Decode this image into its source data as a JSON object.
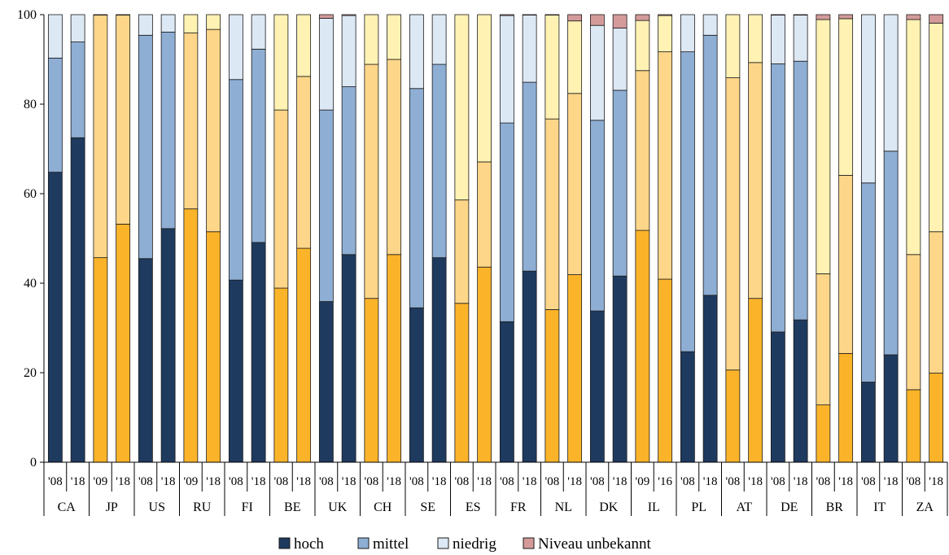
{
  "chart_data": {
    "type": "bar",
    "stacked": true,
    "title": "",
    "xlabel": "",
    "ylabel": "",
    "ylim": [
      0,
      100
    ],
    "yticks": [
      0,
      20,
      40,
      60,
      80,
      100
    ],
    "grid": false,
    "legend_position": "bottom",
    "countries": [
      "CA",
      "JP",
      "US",
      "RU",
      "FI",
      "BE",
      "UK",
      "CH",
      "SE",
      "ES",
      "FR",
      "NL",
      "DK",
      "IL",
      "PL",
      "AT",
      "DE",
      "BR",
      "IT",
      "ZA"
    ],
    "categories": [
      "'08",
      "'18",
      "'09",
      "'18",
      "'08",
      "'18",
      "'09",
      "'18",
      "'08",
      "'18",
      "'08",
      "'18",
      "'08",
      "'18",
      "'08",
      "'18",
      "'08",
      "'18",
      "'08",
      "'18",
      "'08",
      "'18",
      "'08",
      "'18",
      "'08",
      "'18",
      "'09",
      "'16",
      "'08",
      "'18",
      "'08",
      "'18",
      "'08",
      "'18",
      "'08",
      "'18",
      "'08",
      "'18",
      "'08",
      "'18"
    ],
    "palette": [
      "blue",
      "blue",
      "orange",
      "orange",
      "blue",
      "blue",
      "orange",
      "orange",
      "blue",
      "blue",
      "orange",
      "orange",
      "blue",
      "blue",
      "orange",
      "orange",
      "blue",
      "blue",
      "orange",
      "orange",
      "blue",
      "blue",
      "orange",
      "orange",
      "blue",
      "blue",
      "orange",
      "orange",
      "blue",
      "blue",
      "orange",
      "orange",
      "blue",
      "blue",
      "orange",
      "orange",
      "blue",
      "blue",
      "orange",
      "orange"
    ],
    "series": [
      {
        "name": "hoch",
        "values": [
          64.8,
          72.5,
          45.7,
          53.2,
          45.5,
          52.2,
          56.6,
          51.5,
          40.7,
          49.1,
          38.9,
          47.8,
          35.9,
          46.4,
          36.6,
          46.4,
          34.5,
          45.7,
          35.5,
          43.6,
          31.4,
          42.7,
          34.1,
          41.9,
          33.8,
          41.6,
          51.8,
          40.9,
          24.7,
          37.3,
          20.6,
          36.6,
          29.1,
          31.8,
          12.8,
          24.3,
          17.9,
          24.0,
          16.2,
          19.9
        ]
      },
      {
        "name": "mittel",
        "values": [
          25.5,
          21.4,
          54.2,
          46.7,
          49.9,
          43.9,
          39.3,
          45.2,
          44.8,
          43.2,
          39.8,
          38.4,
          42.8,
          37.5,
          52.3,
          43.6,
          49.0,
          43.2,
          23.1,
          23.5,
          44.4,
          42.2,
          42.6,
          40.5,
          42.6,
          41.5,
          35.7,
          50.8,
          67.0,
          58.1,
          65.3,
          52.7,
          59.9,
          57.8,
          29.3,
          39.8,
          44.5,
          45.5,
          30.2,
          31.6
        ]
      },
      {
        "name": "niedrig",
        "values": [
          9.7,
          6.1,
          0.1,
          0.1,
          4.6,
          3.9,
          4.1,
          3.3,
          14.5,
          7.7,
          21.3,
          13.8,
          20.5,
          15.9,
          11.1,
          10.0,
          16.5,
          11.1,
          41.4,
          32.9,
          24.0,
          15.0,
          23.2,
          16.2,
          21.2,
          13.9,
          11.2,
          8.1,
          8.3,
          4.6,
          14.1,
          10.7,
          10.9,
          10.3,
          56.8,
          35.0,
          37.6,
          30.5,
          52.5,
          46.6
        ]
      },
      {
        "name": "Niveau unbekannt",
        "values": [
          0,
          0,
          0,
          0,
          0,
          0,
          0,
          0,
          0,
          0,
          0,
          0,
          0.8,
          0.2,
          0,
          0,
          0,
          0,
          0,
          0,
          0.2,
          0.1,
          0.1,
          1.4,
          2.4,
          3.0,
          1.3,
          0.2,
          0,
          0,
          0,
          0,
          0.1,
          0.1,
          1.1,
          0.9,
          0,
          0,
          1.1,
          1.9
        ]
      }
    ],
    "colors": {
      "blue": [
        "#1f3a5f",
        "#8eaed4",
        "#dde8f5",
        "#d49a9a"
      ],
      "orange": [
        "#fbb42a",
        "#fdd689",
        "#fff2b3",
        "#d49a9a"
      ],
      "legend": [
        "#1f3a5f",
        "#8eaed4",
        "#dde8f5",
        "#d49a9a"
      ]
    }
  }
}
